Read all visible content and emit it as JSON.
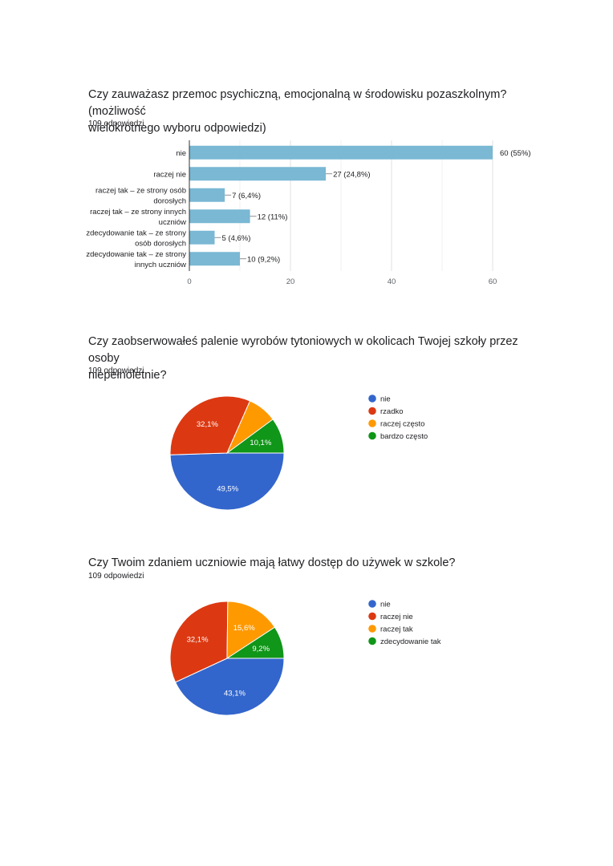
{
  "questions": [
    {
      "title_line1": "Czy zauważasz przemoc psychiczną, emocjonalną w środowisku pozaszkolnym?  (możliwość",
      "title_line2": "wielokrotnego wyboru odpowiedzi)",
      "responses": "109 odpowiedzi"
    },
    {
      "title_line1": "Czy zaobserwowałeś palenie wyrobów tytoniowych w okolicach Twojej szkoły przez osoby",
      "title_line2": "niepełnoletnie?",
      "responses": "109 odpowiedzi"
    },
    {
      "title_line1": "Czy Twoim zdaniem uczniowie mają łatwy dostęp do używek w szkole?",
      "title_line2": "",
      "responses": "109 odpowiedzi"
    }
  ],
  "chart_data": [
    {
      "type": "bar",
      "orientation": "horizontal",
      "categories": [
        [
          "nie"
        ],
        [
          "raczej nie"
        ],
        [
          "raczej tak – ze strony osób",
          "dorosłych"
        ],
        [
          "raczej tak – ze strony innych",
          "uczniów"
        ],
        [
          "zdecydowanie tak – ze strony",
          "osób dorosłych"
        ],
        [
          "zdecydowanie tak – ze strony",
          "innych uczniów"
        ]
      ],
      "values": [
        60,
        27,
        7,
        12,
        5,
        10
      ],
      "value_labels": [
        "60 (55%)",
        "27 (24,8%)",
        "7 (6,4%)",
        "12 (11%)",
        "5 (4,6%)",
        "10 (9,2%)"
      ],
      "xlim": [
        0,
        60
      ],
      "xticks": [
        "0",
        "20",
        "40",
        "60"
      ],
      "xtick_values": [
        0,
        20,
        40,
        60
      ],
      "grid": true,
      "color": "#7ab8d4"
    },
    {
      "type": "pie",
      "values": [
        49.5,
        32.1,
        8.3,
        10.1
      ],
      "labels": [
        "nie",
        "rzadko",
        "raczej często",
        "bardzo często"
      ],
      "slice_labels": [
        "49,5%",
        "32,1%",
        "",
        "10,1%"
      ],
      "colors": [
        "#3366cc",
        "#dc3912",
        "#ff9900",
        "#109618"
      ],
      "legend": "right"
    },
    {
      "type": "pie",
      "values": [
        43.1,
        32.1,
        15.6,
        9.2
      ],
      "labels": [
        "nie",
        "raczej nie",
        "raczej tak",
        "zdecydowanie tak"
      ],
      "slice_labels": [
        "43,1%",
        "32,1%",
        "15,6%",
        "9,2%"
      ],
      "colors": [
        "#3366cc",
        "#dc3912",
        "#ff9900",
        "#109618"
      ],
      "legend": "right"
    }
  ]
}
